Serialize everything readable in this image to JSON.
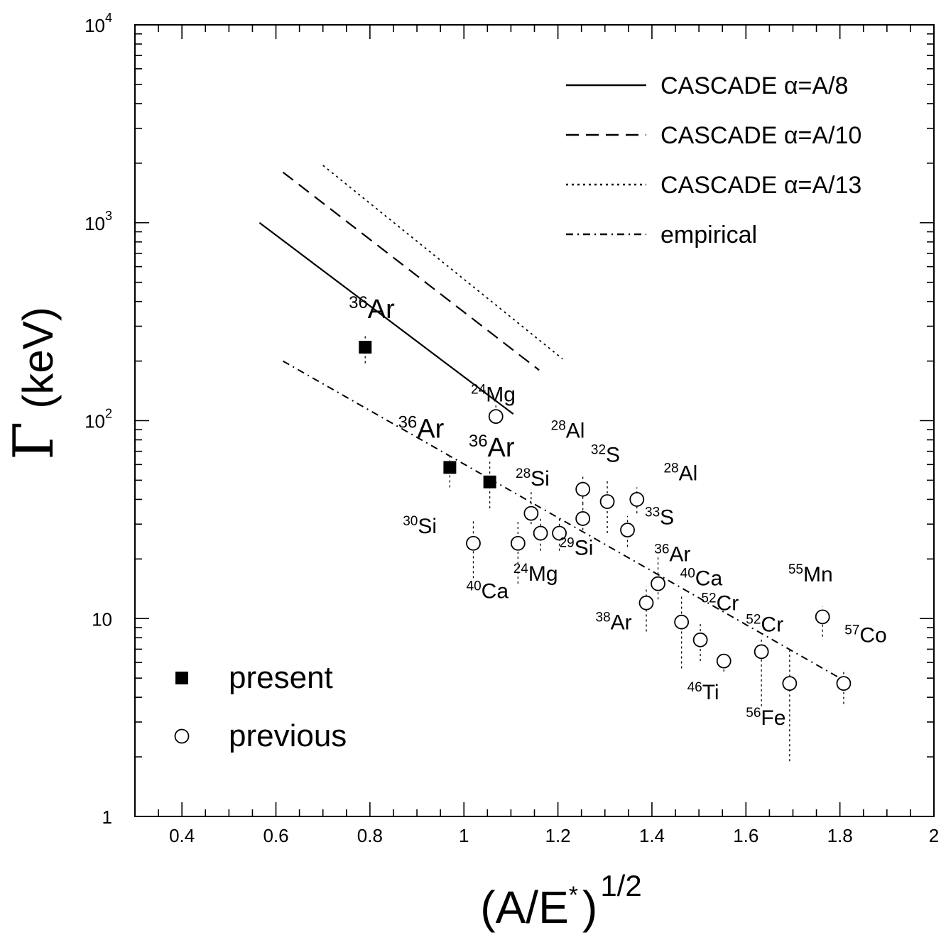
{
  "chart_data": {
    "type": "scatter",
    "title": "",
    "xlabel": {
      "base": "(A/E",
      "star": "*",
      "close": ")",
      "exponent": "1/2"
    },
    "ylabel": {
      "symbol": "Γ",
      "unit": "(keV)"
    },
    "xlim": [
      0.3,
      2.0
    ],
    "ylim": [
      1,
      10000
    ],
    "yscale": "log",
    "x_ticks": [
      {
        "value": 0.4,
        "label": "0.4"
      },
      {
        "value": 0.6,
        "label": "0.6"
      },
      {
        "value": 0.8,
        "label": "0.8"
      },
      {
        "value": 1.0,
        "label": "1"
      },
      {
        "value": 1.2,
        "label": "1.2"
      },
      {
        "value": 1.4,
        "label": "1.4"
      },
      {
        "value": 1.6,
        "label": "1.6"
      },
      {
        "value": 1.8,
        "label": "1.8"
      },
      {
        "value": 2.0,
        "label": "2"
      }
    ],
    "y_ticks": [
      {
        "value": 1,
        "label": "1",
        "exp": ""
      },
      {
        "value": 10,
        "label": "10",
        "exp": ""
      },
      {
        "value": 100,
        "label": "10",
        "exp": "2"
      },
      {
        "value": 1000,
        "label": "10",
        "exp": "3"
      },
      {
        "value": 10000,
        "label": "10",
        "exp": "4"
      }
    ],
    "legend": {
      "position": "top-right",
      "entries": [
        {
          "label": "CASCADE α=A/8",
          "dash": "solid"
        },
        {
          "label": "CASCADE α=A/10",
          "dash": "dashed"
        },
        {
          "label": "CASCADE α=A/13",
          "dash": "dotted"
        },
        {
          "label": "empirical",
          "dash": "dashdot"
        }
      ]
    },
    "marker_legend": {
      "position": "bottom-left",
      "entries": [
        {
          "label": "present",
          "marker": "filled-square"
        },
        {
          "label": "previous",
          "marker": "open-circle"
        }
      ]
    },
    "lines": [
      {
        "name": "CASCADE α=A/8",
        "dash": "solid",
        "width": 2.2,
        "x": [
          0.565,
          1.105
        ],
        "y": [
          1000,
          108
        ]
      },
      {
        "name": "CASCADE α=A/10",
        "dash": "dashed",
        "width": 2.2,
        "x": [
          0.615,
          1.16
        ],
        "y": [
          1800,
          180
        ]
      },
      {
        "name": "CASCADE α=A/13",
        "dash": "dotted",
        "width": 1.8,
        "x": [
          0.7,
          1.21
        ],
        "y": [
          1950,
          205
        ]
      },
      {
        "name": "empirical",
        "dash": "dashdot",
        "width": 2.0,
        "x": [
          0.615,
          1.8
        ],
        "y": [
          200,
          5.0
        ]
      }
    ],
    "present": [
      {
        "x": 0.79,
        "y": 235,
        "err_lo": 195,
        "err_hi": 270
      },
      {
        "x": 0.97,
        "y": 58,
        "err_lo": 46,
        "err_hi": 67
      },
      {
        "x": 1.055,
        "y": 49,
        "err_lo": 36,
        "err_hi": 62
      }
    ],
    "previous": [
      {
        "x": 1.068,
        "y": 105,
        "err_lo": 98,
        "err_hi": 120
      },
      {
        "x": 1.02,
        "y": 24,
        "err_lo": 16,
        "err_hi": 32
      },
      {
        "x": 1.115,
        "y": 24,
        "err_lo": 15,
        "err_hi": 31
      },
      {
        "x": 1.143,
        "y": 34,
        "err_lo": 30,
        "err_hi": 45
      },
      {
        "x": 1.163,
        "y": 27,
        "err_lo": 22,
        "err_hi": 33
      },
      {
        "x": 1.203,
        "y": 27,
        "err_lo": 22,
        "err_hi": 33
      },
      {
        "x": 1.253,
        "y": 45,
        "err_lo": 38,
        "err_hi": 52
      },
      {
        "x": 1.253,
        "y": 32,
        "err_lo": 28,
        "err_hi": 38
      },
      {
        "x": 1.305,
        "y": 39,
        "err_lo": 27,
        "err_hi": 50
      },
      {
        "x": 1.348,
        "y": 28,
        "err_lo": 23,
        "err_hi": 33
      },
      {
        "x": 1.368,
        "y": 40,
        "err_lo": 34,
        "err_hi": 46
      },
      {
        "x": 1.388,
        "y": 12,
        "err_lo": 8.6,
        "err_hi": 14.5
      },
      {
        "x": 1.413,
        "y": 15,
        "err_lo": 12.5,
        "err_hi": 21
      },
      {
        "x": 1.463,
        "y": 9.6,
        "err_lo": 5.6,
        "err_hi": 13
      },
      {
        "x": 1.503,
        "y": 7.8,
        "err_lo": 6.1,
        "err_hi": 9.6
      },
      {
        "x": 1.553,
        "y": 6.1,
        "err_lo": 5.4,
        "err_hi": 6.8
      },
      {
        "x": 1.633,
        "y": 6.8,
        "err_lo": 3.6,
        "err_hi": 8.1
      },
      {
        "x": 1.693,
        "y": 4.7,
        "err_lo": 1.9,
        "err_hi": 6.9
      },
      {
        "x": 1.763,
        "y": 10.2,
        "err_lo": 8.1,
        "err_hi": 11.5
      },
      {
        "x": 1.808,
        "y": 4.7,
        "err_lo": 3.7,
        "err_hi": 5.4
      }
    ],
    "annotations": [
      {
        "sup": "36",
        "text": "Ar",
        "x": 0.755,
        "y": 330,
        "size": 38
      },
      {
        "sup": "24",
        "text": "Mg",
        "x": 1.015,
        "y": 125,
        "size": 30
      },
      {
        "sup": "36",
        "text": "Ar",
        "x": 0.86,
        "y": 82,
        "size": 38
      },
      {
        "sup": "36",
        "text": "Ar",
        "x": 1.01,
        "y": 66,
        "size": 38
      },
      {
        "sup": "28",
        "text": "Al",
        "x": 1.185,
        "y": 82,
        "size": 30
      },
      {
        "sup": "32",
        "text": "S",
        "x": 1.27,
        "y": 62,
        "size": 30
      },
      {
        "sup": "28",
        "text": "Al",
        "x": 1.425,
        "y": 50,
        "size": 30
      },
      {
        "sup": "28",
        "text": "Si",
        "x": 1.11,
        "y": 47,
        "size": 30
      },
      {
        "sup": "33",
        "text": "S",
        "x": 1.385,
        "y": 30,
        "size": 30
      },
      {
        "sup": "30",
        "text": "Si",
        "x": 0.87,
        "y": 27,
        "size": 30
      },
      {
        "sup": "29",
        "text": "Si",
        "x": 1.203,
        "y": 21,
        "size": 30
      },
      {
        "sup": "36",
        "text": "Ar",
        "x": 1.405,
        "y": 19.5,
        "size": 30
      },
      {
        "sup": "24",
        "text": "Mg",
        "x": 1.105,
        "y": 15.5,
        "size": 30
      },
      {
        "sup": "40",
        "text": "Ca",
        "x": 1.46,
        "y": 14.7,
        "size": 30
      },
      {
        "sup": "40",
        "text": "Ca",
        "x": 1.005,
        "y": 12.7,
        "size": 30
      },
      {
        "sup": "55",
        "text": "Mn",
        "x": 1.69,
        "y": 15.4,
        "size": 30
      },
      {
        "sup": "52",
        "text": "Cr",
        "x": 1.505,
        "y": 11.0,
        "size": 30
      },
      {
        "sup": "38",
        "text": "Ar",
        "x": 1.28,
        "y": 8.8,
        "size": 30
      },
      {
        "sup": "52",
        "text": "Cr",
        "x": 1.6,
        "y": 8.6,
        "size": 30
      },
      {
        "sup": "57",
        "text": "Co",
        "x": 1.81,
        "y": 7.6,
        "size": 30
      },
      {
        "sup": "46",
        "text": "Ti",
        "x": 1.475,
        "y": 3.9,
        "size": 30
      },
      {
        "sup": "56",
        "text": "Fe",
        "x": 1.6,
        "y": 2.9,
        "size": 30
      }
    ]
  }
}
